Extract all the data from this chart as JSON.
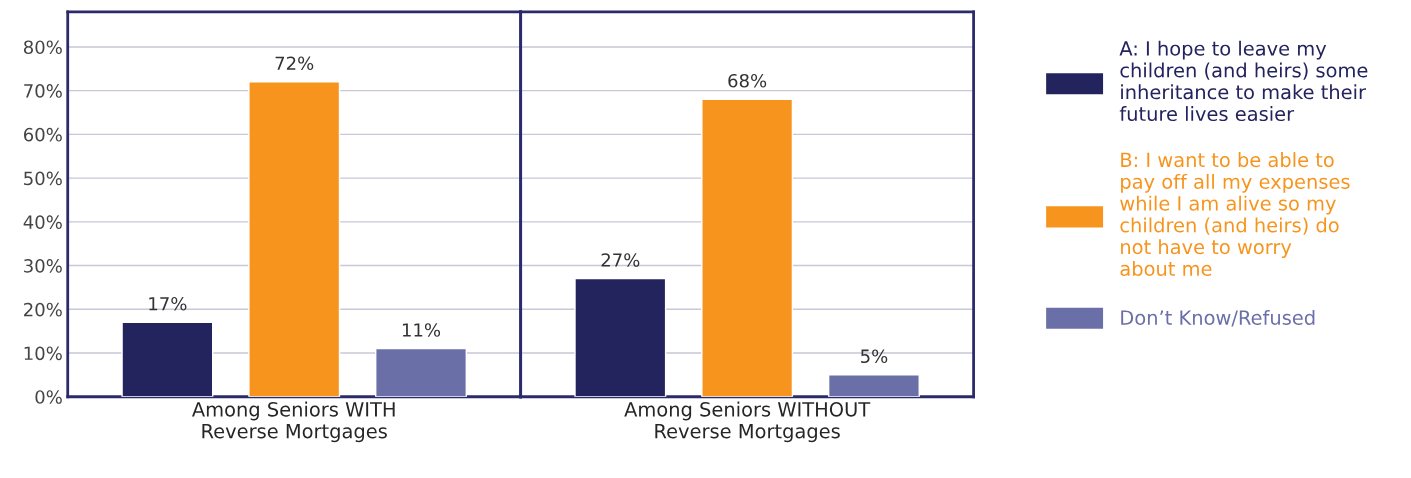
{
  "chart_data": {
    "type": "bar",
    "categories": [
      "Among Seniors WITH\nReverse Mortgages",
      "Among Seniors WITHOUT\nReverse Mortgages"
    ],
    "ylim": [
      0,
      88
    ],
    "yticks": [
      {
        "value": 0,
        "label": "0%"
      },
      {
        "value": 10,
        "label": "10%"
      },
      {
        "value": 20,
        "label": "20%"
      },
      {
        "value": 30,
        "label": "30%"
      },
      {
        "value": 40,
        "label": "40%"
      },
      {
        "value": 50,
        "label": "50%"
      },
      {
        "value": 60,
        "label": "60%"
      },
      {
        "value": 70,
        "label": "70%"
      },
      {
        "value": 80,
        "label": "80%"
      }
    ],
    "grid": "y",
    "legend": "right",
    "series": [
      {
        "name": "A: I hope to leave my\nchildren (and heirs) some\ninheritance to make their\nfuture lives easier",
        "color": "#23235e",
        "values": [
          17,
          27
        ],
        "value_labels": [
          "17%",
          "27%"
        ]
      },
      {
        "name": "B: I want to be able to\npay off all my expenses\nwhile I am alive so my\nchildren (and heirs) do\nnot have to worry\nabout me",
        "color": "#f7941d",
        "values": [
          72,
          68
        ],
        "value_labels": [
          "72%",
          "68%"
        ]
      },
      {
        "name": "Don’t Know/Refused",
        "color": "#6a6fa8",
        "values": [
          11,
          5
        ],
        "value_labels": [
          "11%",
          "5%"
        ]
      }
    ]
  }
}
